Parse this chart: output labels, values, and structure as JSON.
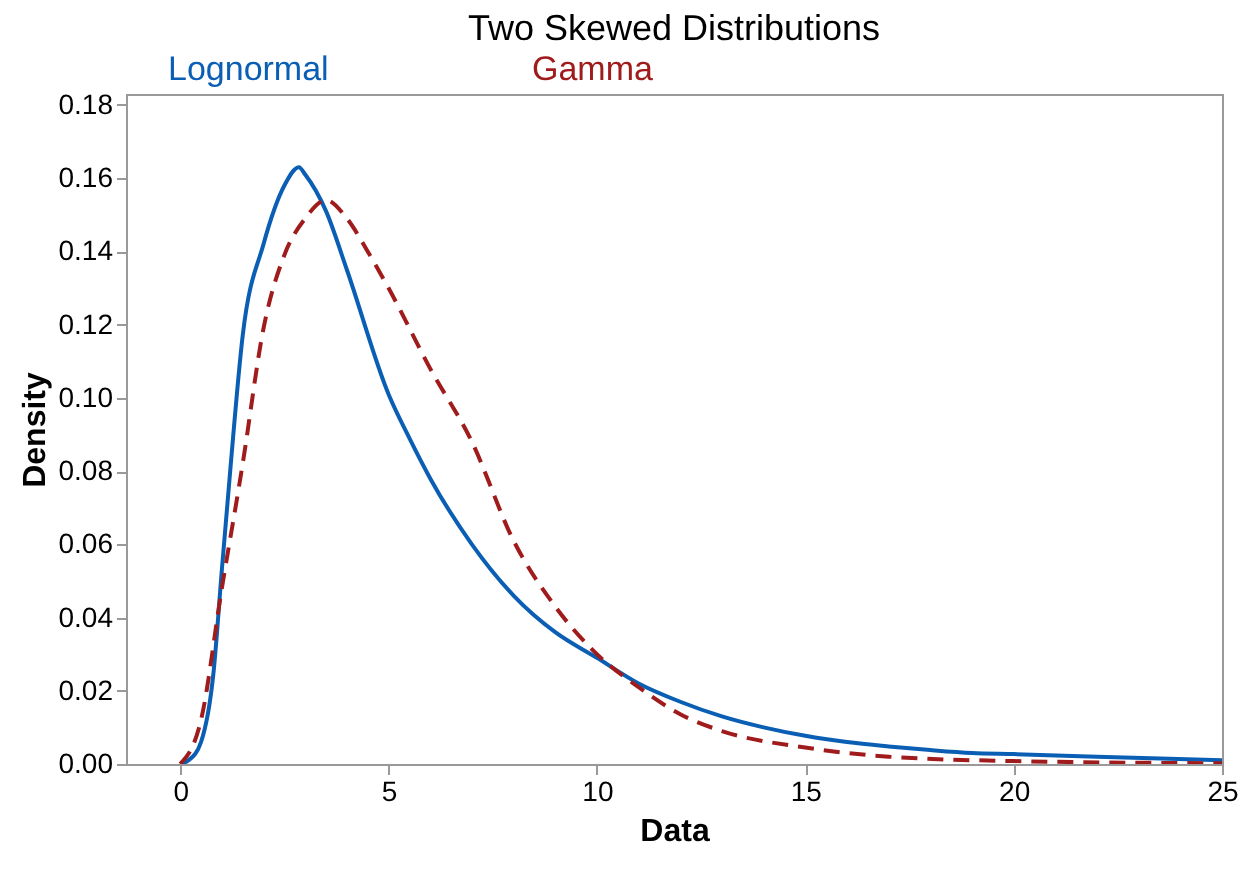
{
  "chart_data": {
    "type": "line",
    "title": "Two Skewed Distributions",
    "xlabel": "Data",
    "ylabel": "Density",
    "xlim": [
      -1.3,
      25
    ],
    "xticks": [
      0,
      5,
      10,
      15,
      20,
      25
    ],
    "ylim": [
      0,
      0.183
    ],
    "yticks": [
      {
        "value": 0,
        "label": "0.00"
      },
      {
        "value": 0.02,
        "label": "0.02"
      },
      {
        "value": 0.04,
        "label": "0.04"
      },
      {
        "value": 0.06,
        "label": "0.06"
      },
      {
        "value": 0.08,
        "label": "0.08"
      },
      {
        "value": 0.1,
        "label": "0.10"
      },
      {
        "value": 0.12,
        "label": "0.12"
      },
      {
        "value": 0.14,
        "label": "0.14"
      },
      {
        "value": 0.16,
        "label": "0.16"
      },
      {
        "value": 0.18,
        "label": "0.18"
      }
    ],
    "grid": false,
    "legend": "top",
    "marker": "none",
    "series": [
      {
        "name": "Lognormal",
        "color": "#0a5fb4",
        "line_style": "solid",
        "x": [
          0,
          0.2,
          0.5,
          0.8,
          1,
          1.2,
          1.5,
          2,
          2.5,
          2.85,
          3,
          3.5,
          4,
          5,
          5.5,
          6,
          7,
          8,
          9,
          10,
          11,
          12,
          13,
          14,
          15,
          16,
          17,
          18,
          19,
          20,
          22,
          25
        ],
        "values": [
          0,
          0.001,
          0.006,
          0.025,
          0.053,
          0.08,
          0.117,
          0.142,
          0.158,
          0.163,
          0.161,
          0.151,
          0.135,
          0.101,
          0.089,
          0.078,
          0.06,
          0.046,
          0.036,
          0.029,
          0.022,
          0.017,
          0.013,
          0.01,
          0.0077,
          0.006,
          0.0048,
          0.0038,
          0.003,
          0.0027,
          0.002,
          0.001
        ]
      },
      {
        "name": "Gamma",
        "color": "#a01c1c",
        "line_style": "dashed",
        "x": [
          0,
          0.5,
          1,
          1.4,
          1.5,
          2,
          2.5,
          3,
          3.5,
          4,
          4.5,
          5,
          6,
          7,
          8,
          9,
          10,
          11,
          12,
          13,
          15,
          17,
          20,
          25
        ],
        "values": [
          0,
          0.012,
          0.048,
          0.075,
          0.082,
          0.119,
          0.139,
          0.149,
          0.154,
          0.149,
          0.14,
          0.13,
          0.108,
          0.088,
          0.061,
          0.043,
          0.03,
          0.021,
          0.0136,
          0.009,
          0.0045,
          0.002,
          0.0008,
          0.0002
        ]
      }
    ]
  }
}
